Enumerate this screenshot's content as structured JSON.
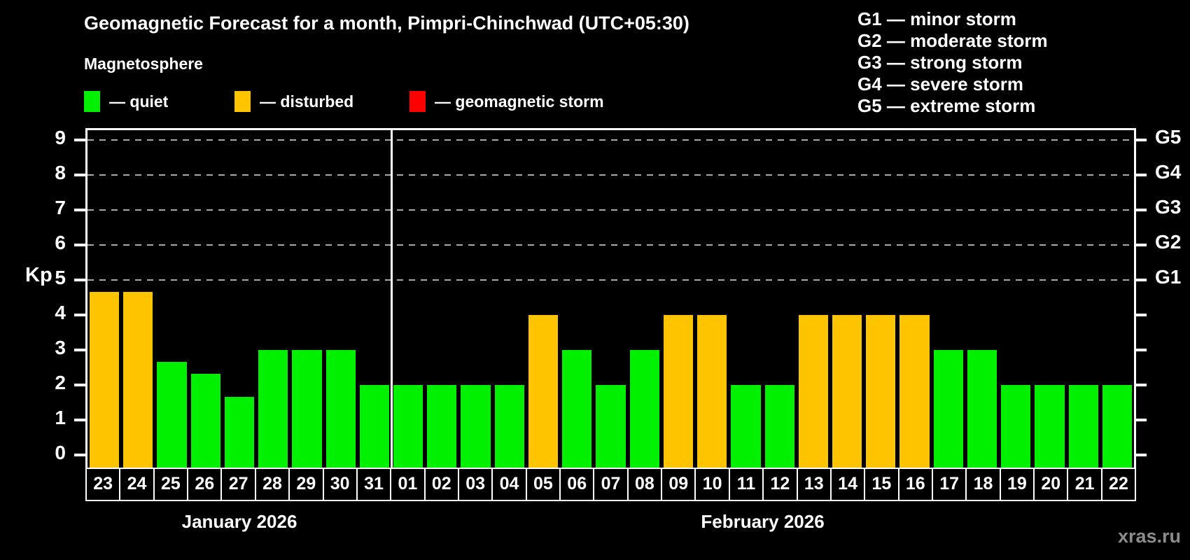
{
  "header": {
    "title": "Geomagnetic Forecast for a month, Pimpri-Chinchwad (UTC+05:30)",
    "legend_title": "Magnetosphere",
    "legend": [
      {
        "key": "quiet",
        "label": "— quiet"
      },
      {
        "key": "disturbed",
        "label": "— disturbed"
      },
      {
        "key": "storm",
        "label": "— geomagnetic storm"
      }
    ],
    "g_scale": [
      "G1 — minor storm",
      "G2 — moderate storm",
      "G3 — strong storm",
      "G4 — severe storm",
      "G5 — extreme storm"
    ]
  },
  "colors": {
    "quiet": "#00f000",
    "disturbed": "#ffc400",
    "storm": "#ff0000",
    "axis": "#ffffff",
    "grid": "#a8a8a8",
    "background": "#000000",
    "watermark": "#8c8c8c"
  },
  "chart_data": {
    "type": "bar",
    "title": "Geomagnetic Forecast for a month, Pimpri-Chinchwad (UTC+05:30)",
    "xlabel": "",
    "ylabel": "Kp",
    "ylim": [
      0,
      9
    ],
    "yticks": [
      0,
      1,
      2,
      3,
      4,
      5,
      6,
      7,
      8,
      9
    ],
    "gridlines_kp": [
      5,
      6,
      7,
      8,
      9
    ],
    "grid": "dashed horizontal at Kp 5-9",
    "right_axis": [
      {
        "kp": 5,
        "label": "G1"
      },
      {
        "kp": 6,
        "label": "G2"
      },
      {
        "kp": 7,
        "label": "G3"
      },
      {
        "kp": 8,
        "label": "G4"
      },
      {
        "kp": 9,
        "label": "G5"
      }
    ],
    "months": [
      {
        "label": "January 2026",
        "days": 9
      },
      {
        "label": "February 2026",
        "days": 22
      }
    ],
    "bars": [
      {
        "day": "23",
        "kp": 4.67,
        "status": "disturbed"
      },
      {
        "day": "24",
        "kp": 4.67,
        "status": "disturbed"
      },
      {
        "day": "25",
        "kp": 2.67,
        "status": "quiet"
      },
      {
        "day": "26",
        "kp": 2.33,
        "status": "quiet"
      },
      {
        "day": "27",
        "kp": 1.67,
        "status": "quiet"
      },
      {
        "day": "28",
        "kp": 3,
        "status": "quiet"
      },
      {
        "day": "29",
        "kp": 3,
        "status": "quiet"
      },
      {
        "day": "30",
        "kp": 3,
        "status": "quiet"
      },
      {
        "day": "31",
        "kp": 2,
        "status": "quiet"
      },
      {
        "day": "01",
        "kp": 2,
        "status": "quiet"
      },
      {
        "day": "02",
        "kp": 2,
        "status": "quiet"
      },
      {
        "day": "03",
        "kp": 2,
        "status": "quiet"
      },
      {
        "day": "04",
        "kp": 2,
        "status": "quiet"
      },
      {
        "day": "05",
        "kp": 4,
        "status": "disturbed"
      },
      {
        "day": "06",
        "kp": 3,
        "status": "quiet"
      },
      {
        "day": "07",
        "kp": 2,
        "status": "quiet"
      },
      {
        "day": "08",
        "kp": 3,
        "status": "quiet"
      },
      {
        "day": "09",
        "kp": 4,
        "status": "disturbed"
      },
      {
        "day": "10",
        "kp": 4,
        "status": "disturbed"
      },
      {
        "day": "11",
        "kp": 2,
        "status": "quiet"
      },
      {
        "day": "12",
        "kp": 2,
        "status": "quiet"
      },
      {
        "day": "13",
        "kp": 4,
        "status": "disturbed"
      },
      {
        "day": "14",
        "kp": 4,
        "status": "disturbed"
      },
      {
        "day": "15",
        "kp": 4,
        "status": "disturbed"
      },
      {
        "day": "16",
        "kp": 4,
        "status": "disturbed"
      },
      {
        "day": "17",
        "kp": 3,
        "status": "quiet"
      },
      {
        "day": "18",
        "kp": 3,
        "status": "quiet"
      },
      {
        "day": "19",
        "kp": 2,
        "status": "quiet"
      },
      {
        "day": "20",
        "kp": 2,
        "status": "quiet"
      },
      {
        "day": "21",
        "kp": 2,
        "status": "quiet"
      },
      {
        "day": "22",
        "kp": 2,
        "status": "quiet"
      }
    ]
  },
  "footer": {
    "watermark": "xras.ru"
  }
}
